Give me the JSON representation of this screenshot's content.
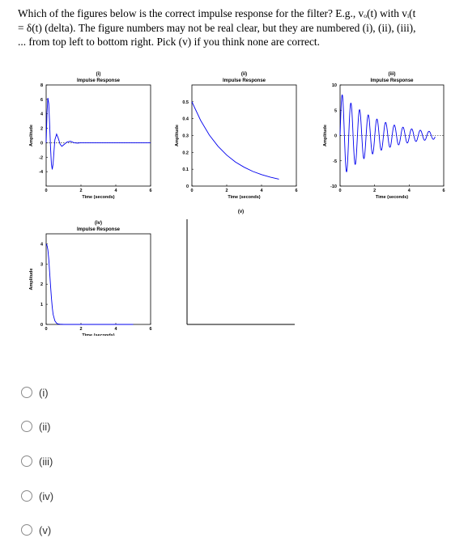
{
  "question": {
    "line1": "Which of the figures below is the correct impulse response for the filter? E.g., vₒ(t) with vᵢ(t",
    "line2": "= δ(t) (delta).  The figure numbers may not be real clear, but they are numbered (i), (ii), (iii),",
    "line3": "... from top left to bottom right.  Pick (v) if you think none are correct."
  },
  "figures": [
    {
      "number": "(i)",
      "title": "Impulse Response",
      "xlabel": "Time (seconds)",
      "ylabel": "Amplitude"
    },
    {
      "number": "(ii)",
      "title": "Impulse Response",
      "xlabel": "Time (seconds)",
      "ylabel": "Amplitude"
    },
    {
      "number": "(iii)",
      "title": "Impulse Response",
      "xlabel": "Time (seconds)",
      "ylabel": "Amplitude"
    },
    {
      "number": "(iv)",
      "title": "Impulse Response",
      "xlabel": "Time (seconds)",
      "ylabel": "Amplitude"
    },
    {
      "number": "(v)"
    }
  ],
  "chart_data": [
    {
      "type": "line",
      "title": "Impulse Response",
      "number": "(i)",
      "xlabel": "Time (seconds)",
      "ylabel": "Amplitude",
      "xlim": [
        0,
        6
      ],
      "ylim": [
        -6,
        8
      ],
      "x_ticks": [
        "0",
        "2",
        "4",
        "6"
      ],
      "y_ticks": [
        "-4",
        "-2",
        "0",
        "2",
        "4",
        "6",
        "8"
      ],
      "description": "damped oscillation",
      "series": [
        {
          "x": [
            0,
            0.05,
            0.1,
            0.15,
            0.2,
            0.25,
            0.3,
            0.35,
            0.4,
            0.45,
            0.5,
            0.6,
            0.7,
            0.8,
            0.9,
            1.0,
            1.2,
            1.4,
            1.6,
            1.8,
            2.0,
            2.5,
            3,
            4,
            5,
            6
          ],
          "y": [
            0,
            4.2,
            6.2,
            5.4,
            2.6,
            -0.6,
            -2.9,
            -3.7,
            -2.9,
            -1.2,
            0.4,
            1.2,
            0.6,
            -0.2,
            -0.5,
            -0.3,
            0.1,
            0.2,
            0,
            -0.05,
            0,
            0,
            0,
            0,
            0,
            0
          ]
        }
      ]
    },
    {
      "type": "line",
      "title": "Impulse Response",
      "number": "(ii)",
      "xlabel": "Time (seconds)",
      "ylabel": "Amplitude",
      "xlim": [
        0,
        6
      ],
      "ylim": [
        0,
        0.6
      ],
      "x_ticks": [
        "0",
        "2",
        "4",
        "6"
      ],
      "y_ticks": [
        "0",
        "0.1",
        "0.2",
        "0.3",
        "0.4",
        "0.5"
      ],
      "description": "exponential decay",
      "series": [
        {
          "x": [
            0,
            0.5,
            1,
            1.5,
            2,
            2.5,
            3,
            3.5,
            4,
            4.5,
            5
          ],
          "y": [
            0.5,
            0.39,
            0.303,
            0.236,
            0.184,
            0.143,
            0.112,
            0.087,
            0.068,
            0.053,
            0.041
          ]
        }
      ]
    },
    {
      "type": "line",
      "title": "Impulse Response",
      "number": "(iii)",
      "xlabel": "Time (seconds)",
      "ylabel": "Amplitude",
      "xlim": [
        0,
        6
      ],
      "ylim": [
        -10,
        10
      ],
      "x_ticks": [
        "0",
        "2",
        "4",
        "6"
      ],
      "y_ticks": [
        "-10",
        "-5",
        "0",
        "5",
        "10"
      ],
      "description": "lightly damped oscillation",
      "series": [
        {
          "decay": 0.45,
          "amplitude": 8.5,
          "omega": 12.5,
          "t_end": 5.5
        }
      ]
    },
    {
      "type": "line",
      "title": "Impulse Response",
      "number": "(iv)",
      "xlabel": "Time (seconds)",
      "ylabel": "Amplitude",
      "xlim": [
        0,
        6
      ],
      "ylim": [
        0,
        4.5
      ],
      "x_ticks": [
        "0",
        "2",
        "4",
        "6"
      ],
      "y_ticks": [
        "0",
        "1",
        "2",
        "3",
        "4"
      ],
      "description": "fast exponential decay",
      "series": [
        {
          "x": [
            0,
            0.05,
            0.1,
            0.15,
            0.2,
            0.25,
            0.3,
            0.35,
            0.4,
            0.5,
            0.6,
            0.7,
            0.8,
            1.0,
            1.5,
            2,
            3,
            4,
            5
          ],
          "y": [
            4,
            3.92,
            3.7,
            3.25,
            2.6,
            1.95,
            1.35,
            0.85,
            0.5,
            0.18,
            0.06,
            0.02,
            0.01,
            0,
            0,
            0,
            0,
            0,
            0
          ]
        }
      ]
    }
  ],
  "options": [
    {
      "id": "i",
      "label": "(i)"
    },
    {
      "id": "ii",
      "label": "(ii)"
    },
    {
      "id": "iii",
      "label": "(iii)"
    },
    {
      "id": "iv",
      "label": "(iv)"
    },
    {
      "id": "v",
      "label": "(v)"
    }
  ]
}
